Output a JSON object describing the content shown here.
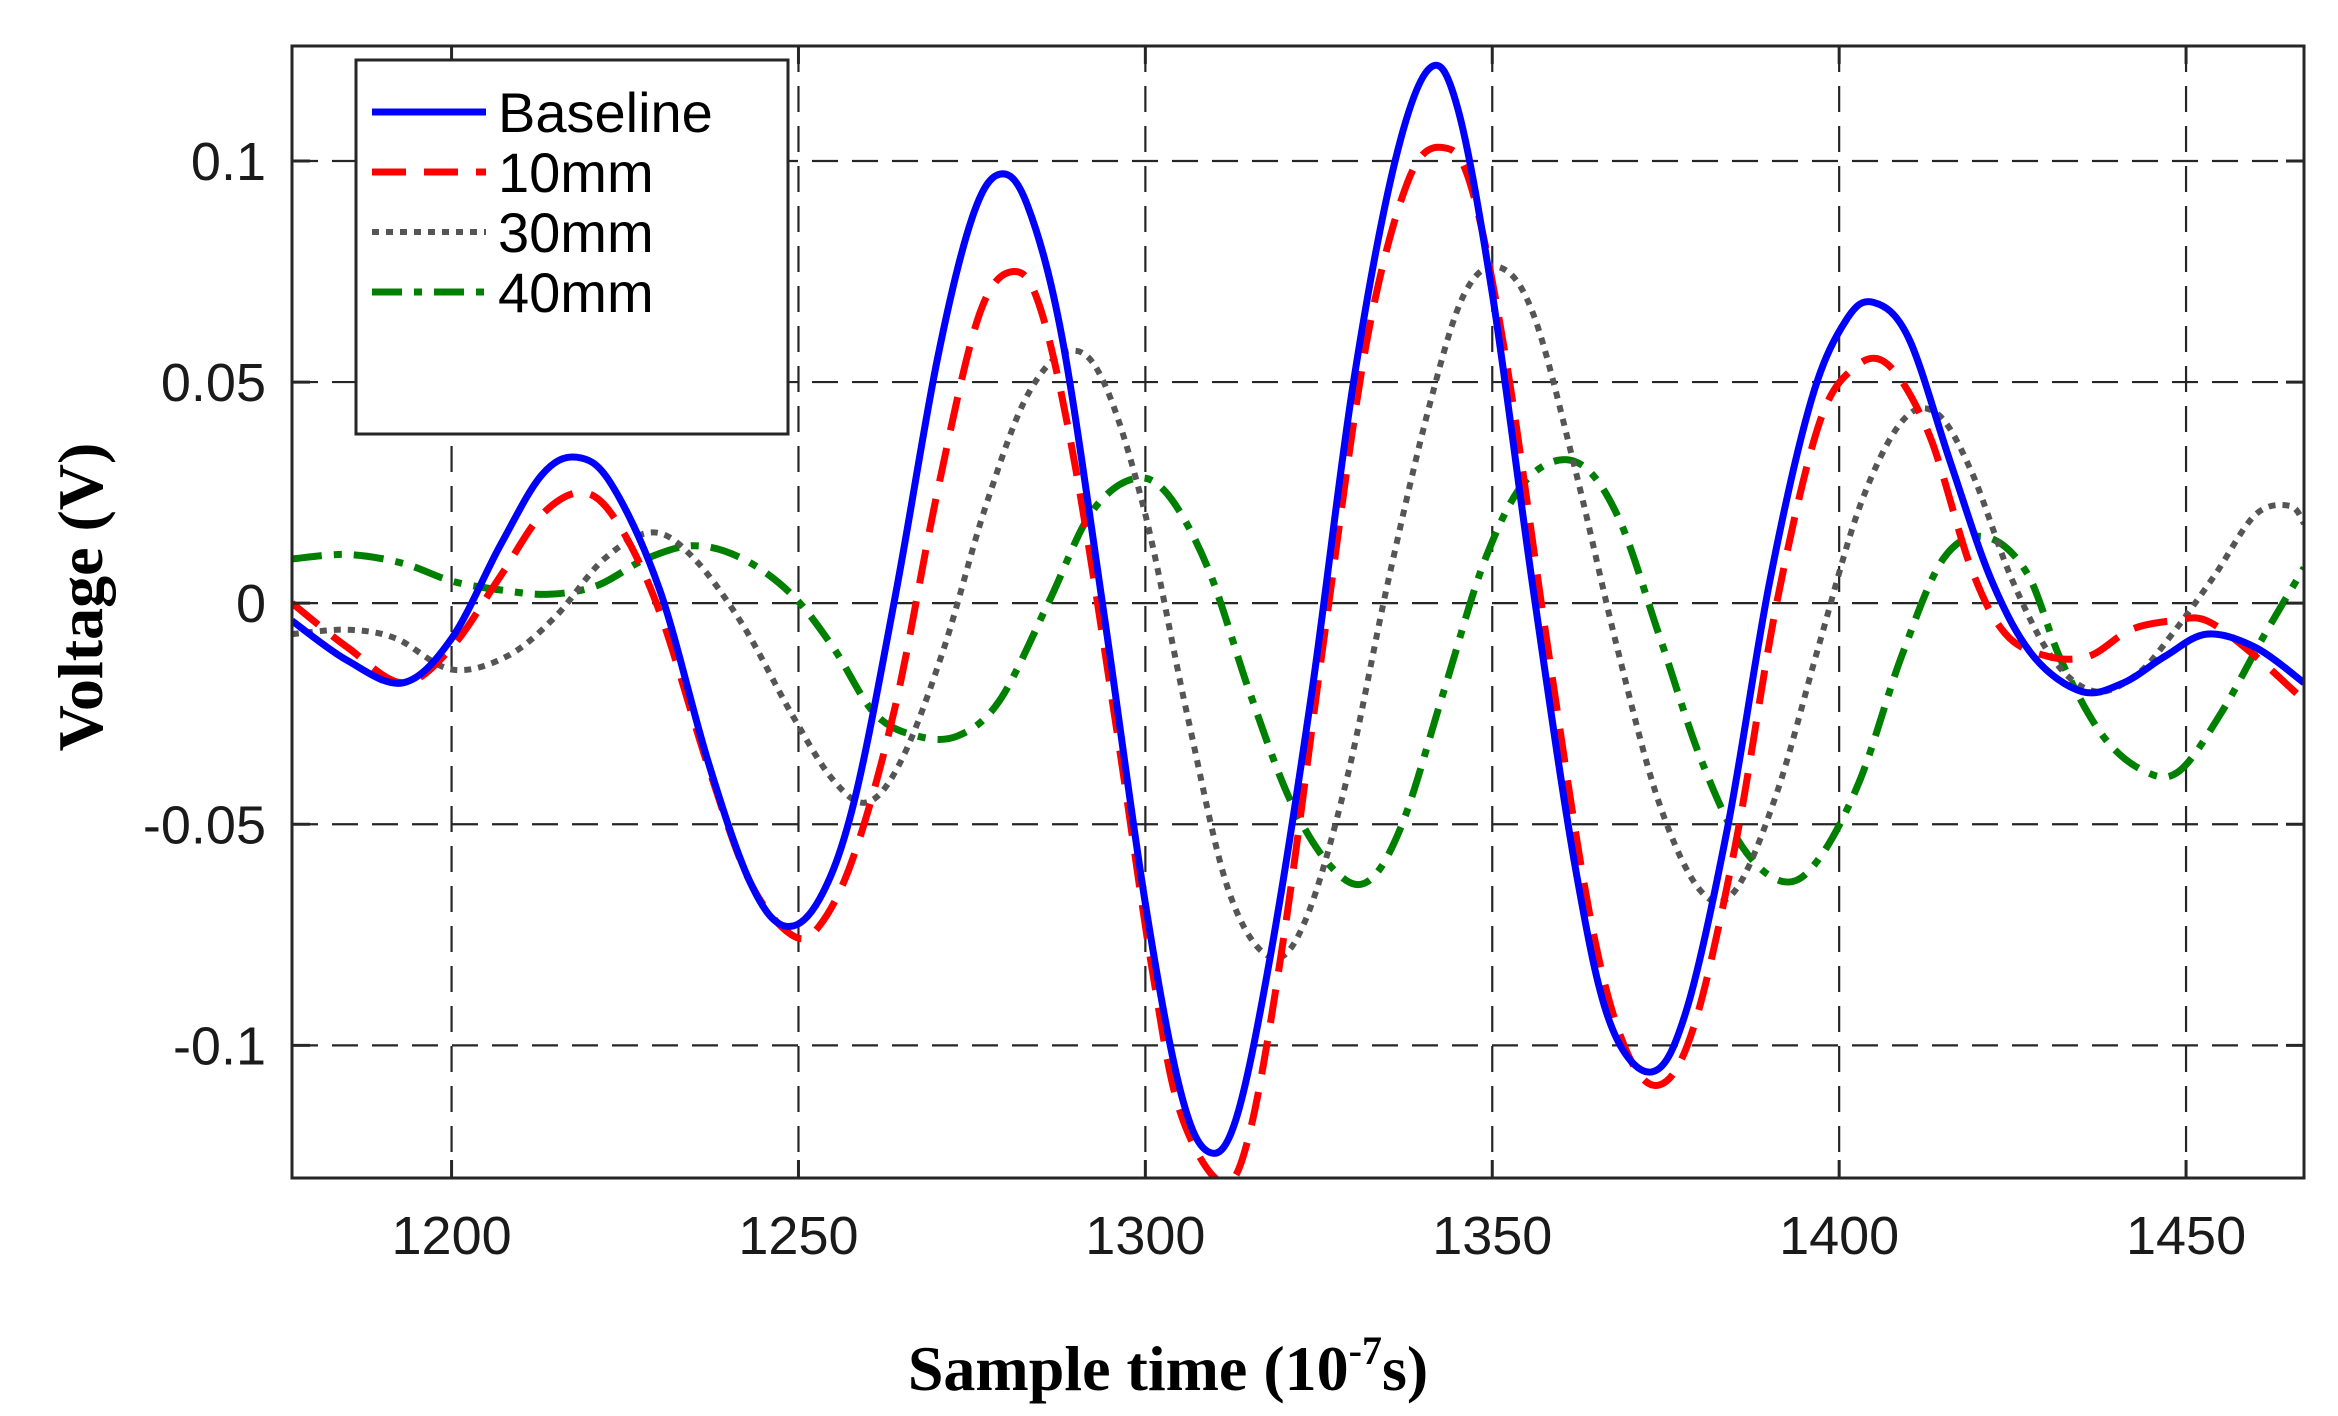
{
  "chart_data": {
    "type": "line",
    "xlabel": "Sample time (10",
    "xlabel_exponent": "-7",
    "xlabel_suffix": "s)",
    "ylabel": "Voltage (V)",
    "xlim": [
      1177,
      1467
    ],
    "ylim": [
      -0.13,
      0.126
    ],
    "grid": true,
    "grid_style": "dashed",
    "legend_position": "top-left",
    "x_ticks": [
      1200,
      1250,
      1300,
      1350,
      1400,
      1450
    ],
    "x_tick_labels": [
      "1200",
      "1250",
      "1300",
      "1350",
      "1400",
      "1450"
    ],
    "y_ticks": [
      0.1,
      0.05,
      0,
      -0.05,
      -0.1
    ],
    "y_tick_labels": [
      "0.1",
      "0.05",
      "0",
      "-0.05",
      "-0.1"
    ],
    "series": [
      {
        "name": "Baseline",
        "color": "#0000ff",
        "style": "solid",
        "points": [
          [
            1177,
            -0.004
          ],
          [
            1185,
            -0.013
          ],
          [
            1193,
            -0.018
          ],
          [
            1200,
            -0.008
          ],
          [
            1207,
            0.013
          ],
          [
            1213,
            0.029
          ],
          [
            1218,
            0.033
          ],
          [
            1223,
            0.027
          ],
          [
            1230,
            0.003
          ],
          [
            1237,
            -0.036
          ],
          [
            1243,
            -0.063
          ],
          [
            1248,
            -0.073
          ],
          [
            1253,
            -0.067
          ],
          [
            1258,
            -0.045
          ],
          [
            1264,
            0.002
          ],
          [
            1270,
            0.055
          ],
          [
            1275,
            0.087
          ],
          [
            1279,
            0.097
          ],
          [
            1283,
            0.09
          ],
          [
            1288,
            0.06
          ],
          [
            1294,
            -0.002
          ],
          [
            1300,
            -0.068
          ],
          [
            1305,
            -0.11
          ],
          [
            1309,
            -0.124
          ],
          [
            1313,
            -0.117
          ],
          [
            1318,
            -0.08
          ],
          [
            1324,
            -0.02
          ],
          [
            1330,
            0.05
          ],
          [
            1336,
            0.1
          ],
          [
            1341,
            0.121
          ],
          [
            1345,
            0.112
          ],
          [
            1350,
            0.07
          ],
          [
            1356,
            0.002
          ],
          [
            1362,
            -0.06
          ],
          [
            1367,
            -0.095
          ],
          [
            1373,
            -0.106
          ],
          [
            1378,
            -0.092
          ],
          [
            1384,
            -0.05
          ],
          [
            1390,
            0.005
          ],
          [
            1396,
            0.046
          ],
          [
            1401,
            0.064
          ],
          [
            1405,
            0.068
          ],
          [
            1410,
            0.06
          ],
          [
            1416,
            0.032
          ],
          [
            1422,
            0.005
          ],
          [
            1428,
            -0.012
          ],
          [
            1435,
            -0.02
          ],
          [
            1441,
            -0.018
          ],
          [
            1447,
            -0.012
          ],
          [
            1453,
            -0.007
          ],
          [
            1460,
            -0.01
          ],
          [
            1467,
            -0.018
          ]
        ]
      },
      {
        "name": "10mm",
        "color": "#ff0000",
        "style": "dashed",
        "points": [
          [
            1177,
            0.0
          ],
          [
            1185,
            -0.01
          ],
          [
            1193,
            -0.018
          ],
          [
            1200,
            -0.01
          ],
          [
            1207,
            0.006
          ],
          [
            1213,
            0.02
          ],
          [
            1219,
            0.025
          ],
          [
            1224,
            0.018
          ],
          [
            1230,
            -0.002
          ],
          [
            1237,
            -0.037
          ],
          [
            1243,
            -0.063
          ],
          [
            1249,
            -0.075
          ],
          [
            1253,
            -0.073
          ],
          [
            1258,
            -0.057
          ],
          [
            1264,
            -0.023
          ],
          [
            1270,
            0.025
          ],
          [
            1276,
            0.065
          ],
          [
            1281,
            0.075
          ],
          [
            1285,
            0.066
          ],
          [
            1290,
            0.03
          ],
          [
            1296,
            -0.03
          ],
          [
            1301,
            -0.083
          ],
          [
            1305,
            -0.115
          ],
          [
            1311,
            -0.131
          ],
          [
            1315,
            -0.12
          ],
          [
            1320,
            -0.075
          ],
          [
            1326,
            -0.005
          ],
          [
            1332,
            0.06
          ],
          [
            1338,
            0.096
          ],
          [
            1343,
            0.103
          ],
          [
            1347,
            0.094
          ],
          [
            1352,
            0.055
          ],
          [
            1358,
            -0.01
          ],
          [
            1364,
            -0.07
          ],
          [
            1369,
            -0.1
          ],
          [
            1374,
            -0.109
          ],
          [
            1379,
            -0.096
          ],
          [
            1385,
            -0.055
          ],
          [
            1391,
            0.0
          ],
          [
            1397,
            0.04
          ],
          [
            1402,
            0.053
          ],
          [
            1407,
            0.054
          ],
          [
            1413,
            0.038
          ],
          [
            1419,
            0.008
          ],
          [
            1424,
            -0.007
          ],
          [
            1430,
            -0.012
          ],
          [
            1436,
            -0.012
          ],
          [
            1442,
            -0.006
          ],
          [
            1448,
            -0.004
          ],
          [
            1453,
            -0.004
          ],
          [
            1460,
            -0.012
          ],
          [
            1467,
            -0.022
          ]
        ]
      },
      {
        "name": "30mm",
        "color": "#555555",
        "style": "dotted",
        "points": [
          [
            1177,
            -0.007
          ],
          [
            1185,
            -0.006
          ],
          [
            1192,
            -0.008
          ],
          [
            1200,
            -0.015
          ],
          [
            1208,
            -0.012
          ],
          [
            1215,
            -0.003
          ],
          [
            1222,
            0.01
          ],
          [
            1229,
            0.016
          ],
          [
            1235,
            0.01
          ],
          [
            1242,
            -0.005
          ],
          [
            1249,
            -0.025
          ],
          [
            1255,
            -0.04
          ],
          [
            1260,
            -0.045
          ],
          [
            1265,
            -0.035
          ],
          [
            1271,
            -0.01
          ],
          [
            1277,
            0.022
          ],
          [
            1283,
            0.047
          ],
          [
            1289,
            0.057
          ],
          [
            1294,
            0.05
          ],
          [
            1300,
            0.02
          ],
          [
            1306,
            -0.025
          ],
          [
            1312,
            -0.065
          ],
          [
            1318,
            -0.08
          ],
          [
            1323,
            -0.072
          ],
          [
            1329,
            -0.04
          ],
          [
            1335,
            0.005
          ],
          [
            1341,
            0.045
          ],
          [
            1346,
            0.07
          ],
          [
            1351,
            0.076
          ],
          [
            1356,
            0.065
          ],
          [
            1362,
            0.03
          ],
          [
            1368,
            -0.01
          ],
          [
            1374,
            -0.045
          ],
          [
            1380,
            -0.065
          ],
          [
            1385,
            -0.065
          ],
          [
            1391,
            -0.043
          ],
          [
            1397,
            -0.01
          ],
          [
            1403,
            0.022
          ],
          [
            1409,
            0.041
          ],
          [
            1414,
            0.043
          ],
          [
            1419,
            0.03
          ],
          [
            1425,
            0.005
          ],
          [
            1431,
            -0.013
          ],
          [
            1437,
            -0.02
          ],
          [
            1443,
            -0.016
          ],
          [
            1448,
            -0.007
          ],
          [
            1454,
            0.006
          ],
          [
            1460,
            0.02
          ],
          [
            1465,
            0.022
          ],
          [
            1467,
            0.018
          ]
        ]
      },
      {
        "name": "40mm",
        "color": "#008000",
        "style": "dashdot",
        "points": [
          [
            1177,
            0.01
          ],
          [
            1185,
            0.011
          ],
          [
            1193,
            0.009
          ],
          [
            1200,
            0.005
          ],
          [
            1207,
            0.003
          ],
          [
            1214,
            0.002
          ],
          [
            1221,
            0.004
          ],
          [
            1228,
            0.01
          ],
          [
            1235,
            0.013
          ],
          [
            1242,
            0.01
          ],
          [
            1249,
            0.002
          ],
          [
            1255,
            -0.01
          ],
          [
            1261,
            -0.025
          ],
          [
            1267,
            -0.03
          ],
          [
            1273,
            -0.03
          ],
          [
            1279,
            -0.022
          ],
          [
            1286,
            0.0
          ],
          [
            1292,
            0.02
          ],
          [
            1298,
            0.028
          ],
          [
            1303,
            0.025
          ],
          [
            1309,
            0.008
          ],
          [
            1315,
            -0.02
          ],
          [
            1321,
            -0.045
          ],
          [
            1327,
            -0.06
          ],
          [
            1332,
            -0.063
          ],
          [
            1337,
            -0.05
          ],
          [
            1343,
            -0.02
          ],
          [
            1349,
            0.01
          ],
          [
            1355,
            0.028
          ],
          [
            1362,
            0.032
          ],
          [
            1368,
            0.02
          ],
          [
            1374,
            -0.007
          ],
          [
            1380,
            -0.035
          ],
          [
            1386,
            -0.055
          ],
          [
            1392,
            -0.063
          ],
          [
            1397,
            -0.058
          ],
          [
            1403,
            -0.04
          ],
          [
            1409,
            -0.012
          ],
          [
            1415,
            0.01
          ],
          [
            1421,
            0.015
          ],
          [
            1427,
            0.007
          ],
          [
            1432,
            -0.013
          ],
          [
            1438,
            -0.03
          ],
          [
            1444,
            -0.038
          ],
          [
            1449,
            -0.038
          ],
          [
            1455,
            -0.025
          ],
          [
            1461,
            -0.008
          ],
          [
            1467,
            0.008
          ]
        ]
      }
    ]
  }
}
